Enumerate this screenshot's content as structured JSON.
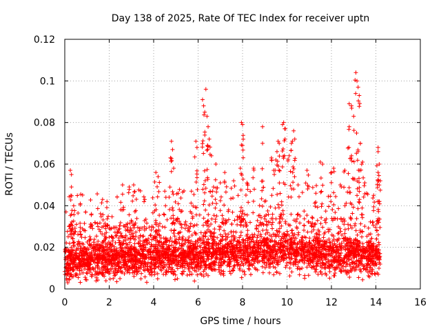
{
  "colors": {
    "series": "#ff0000",
    "axis": "#000000",
    "grid": "#a0a0a0",
    "background": "#ffffff"
  },
  "chart_data": {
    "type": "scatter",
    "title": "Day 138 of 2025, Rate Of TEC Index for receiver uptn",
    "xlabel": "GPS time / hours",
    "ylabel": "ROTI / TECUs",
    "xlim": [
      0,
      16
    ],
    "ylim": [
      0,
      0.12
    ],
    "xticks": [
      0,
      2,
      4,
      6,
      8,
      10,
      12,
      14,
      16
    ],
    "yticks": [
      0,
      0.02,
      0.04,
      0.06,
      0.08,
      0.1,
      0.12
    ],
    "xtick_labels": [
      "0",
      "2",
      "4",
      "6",
      "8",
      "10",
      "12",
      "14",
      "16"
    ],
    "ytick_labels": [
      "0",
      "0.02",
      "0.04",
      "0.06",
      "0.08",
      "0.1",
      "0.12"
    ],
    "grid": true,
    "marker": "+",
    "series": [
      {
        "name": "ROTI",
        "x_range": [
          0,
          14.2
        ],
        "baseline_profile": {
          "hours": [
            0,
            1,
            2,
            3,
            4,
            5,
            6,
            7,
            8,
            9,
            10,
            11,
            12,
            13,
            14
          ],
          "median": [
            0.013,
            0.014,
            0.014,
            0.015,
            0.015,
            0.016,
            0.016,
            0.017,
            0.017,
            0.018,
            0.018,
            0.017,
            0.016,
            0.016,
            0.015
          ]
        },
        "points": [
          [
            0.25,
            0.057
          ],
          [
            0.3,
            0.055
          ],
          [
            0.3,
            0.049
          ],
          [
            0.4,
            0.04
          ],
          [
            0.7,
            0.041
          ],
          [
            1.2,
            0.036
          ],
          [
            1.7,
            0.043
          ],
          [
            1.9,
            0.042
          ],
          [
            2.6,
            0.05
          ],
          [
            2.9,
            0.049
          ],
          [
            3.1,
            0.05
          ],
          [
            3.6,
            0.043
          ],
          [
            4.1,
            0.056
          ],
          [
            4.2,
            0.054
          ],
          [
            4.5,
            0.047
          ],
          [
            4.8,
            0.071
          ],
          [
            4.85,
            0.067
          ],
          [
            4.9,
            0.058
          ],
          [
            5.1,
            0.046
          ],
          [
            5.7,
            0.047
          ],
          [
            5.9,
            0.071
          ],
          [
            5.95,
            0.068
          ],
          [
            6.2,
            0.091
          ],
          [
            6.25,
            0.088
          ],
          [
            6.3,
            0.085
          ],
          [
            6.35,
            0.096
          ],
          [
            6.4,
            0.083
          ],
          [
            6.45,
            0.078
          ],
          [
            6.5,
            0.072
          ],
          [
            6.6,
            0.064
          ],
          [
            6.8,
            0.06
          ],
          [
            7.0,
            0.051
          ],
          [
            7.2,
            0.056
          ],
          [
            7.6,
            0.052
          ],
          [
            7.9,
            0.058
          ],
          [
            7.95,
            0.08
          ],
          [
            8.0,
            0.079
          ],
          [
            8.0,
            0.069
          ],
          [
            8.2,
            0.051
          ],
          [
            8.5,
            0.058
          ],
          [
            8.9,
            0.078
          ],
          [
            8.9,
            0.07
          ],
          [
            9.3,
            0.063
          ],
          [
            9.4,
            0.057
          ],
          [
            9.5,
            0.062
          ],
          [
            9.6,
            0.071
          ],
          [
            9.65,
            0.07
          ],
          [
            9.8,
            0.079
          ],
          [
            9.85,
            0.08
          ],
          [
            9.9,
            0.077
          ],
          [
            10.1,
            0.064
          ],
          [
            10.2,
            0.07
          ],
          [
            10.3,
            0.076
          ],
          [
            10.35,
            0.072
          ],
          [
            10.5,
            0.05
          ],
          [
            10.9,
            0.057
          ],
          [
            11.3,
            0.046
          ],
          [
            11.5,
            0.061
          ],
          [
            11.6,
            0.06
          ],
          [
            12.0,
            0.056
          ],
          [
            12.1,
            0.058
          ],
          [
            12.4,
            0.05
          ],
          [
            12.6,
            0.057
          ],
          [
            12.8,
            0.078
          ],
          [
            12.9,
            0.064
          ],
          [
            12.8,
            0.089
          ],
          [
            12.9,
            0.088
          ],
          [
            13.0,
            0.083
          ],
          [
            13.1,
            0.104
          ],
          [
            13.15,
            0.1
          ],
          [
            13.2,
            0.097
          ],
          [
            13.25,
            0.093
          ],
          [
            13.3,
            0.07
          ],
          [
            13.2,
            0.066
          ],
          [
            13.4,
            0.061
          ],
          [
            13.5,
            0.051
          ],
          [
            13.9,
            0.045
          ],
          [
            14.1,
            0.068
          ],
          [
            14.1,
            0.066
          ],
          [
            14.15,
            0.06
          ],
          [
            14.1,
            0.056
          ],
          [
            14.2,
            0.052
          ]
        ]
      }
    ]
  }
}
